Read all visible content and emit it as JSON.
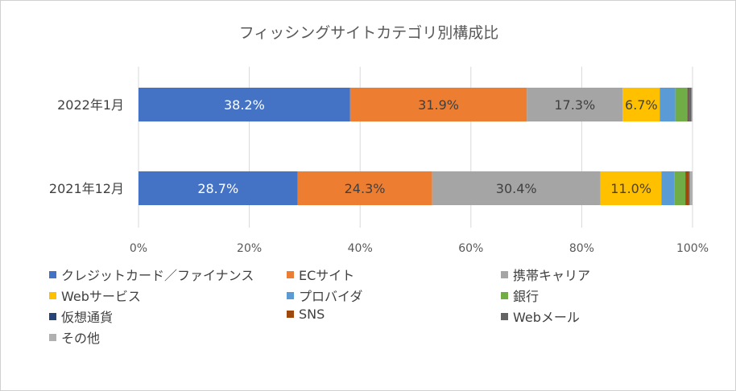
{
  "chart_data": {
    "type": "bar",
    "orientation": "horizontal",
    "stacked": "percent",
    "title": "フィッシングサイトカテゴリ別構成比",
    "categories": [
      "2022年1月",
      "2021年12月"
    ],
    "x_ticks": [
      "0%",
      "20%",
      "40%",
      "60%",
      "80%",
      "100%"
    ],
    "xlim": [
      0,
      100
    ],
    "grid": true,
    "legend_position": "bottom",
    "series": [
      {
        "name": "クレジットカード／ファイナンス",
        "color": "#4472C4",
        "label_color": "#ffffff",
        "values": [
          38.2,
          28.7
        ],
        "labels": [
          "38.2%",
          "28.7%"
        ]
      },
      {
        "name": "ECサイト",
        "color": "#ED7D31",
        "label_color": "#404040",
        "values": [
          31.9,
          24.3
        ],
        "labels": [
          "31.9%",
          "24.3%"
        ]
      },
      {
        "name": "携帯キャリア",
        "color": "#A5A5A5",
        "label_color": "#404040",
        "values": [
          17.3,
          30.4
        ],
        "labels": [
          "17.3%",
          "30.4%"
        ]
      },
      {
        "name": "Webサービス",
        "color": "#FFC000",
        "label_color": "#404040",
        "values": [
          6.7,
          11.0
        ],
        "labels": [
          "6.7%",
          "11.0%"
        ]
      },
      {
        "name": "プロバイダ",
        "color": "#5B9BD5",
        "label_color": "#404040",
        "values": [
          2.8,
          2.3
        ],
        "labels": [
          "",
          ""
        ]
      },
      {
        "name": "銀行",
        "color": "#70AD47",
        "label_color": "#404040",
        "values": [
          2.2,
          2.0
        ],
        "labels": [
          "",
          ""
        ]
      },
      {
        "name": "仮想通貨",
        "color": "#264478",
        "label_color": "#404040",
        "values": [
          0.1,
          0.1
        ],
        "labels": [
          "",
          ""
        ]
      },
      {
        "name": "SNS",
        "color": "#9E480E",
        "label_color": "#404040",
        "values": [
          0.1,
          0.6
        ],
        "labels": [
          "",
          ""
        ]
      },
      {
        "name": "Webメール",
        "color": "#636363",
        "label_color": "#404040",
        "values": [
          0.5,
          0.1
        ],
        "labels": [
          "",
          ""
        ]
      },
      {
        "name": "その他",
        "color": "#B0B0B0",
        "label_color": "#404040",
        "values": [
          0.2,
          0.5
        ],
        "labels": [
          "",
          ""
        ]
      }
    ]
  }
}
